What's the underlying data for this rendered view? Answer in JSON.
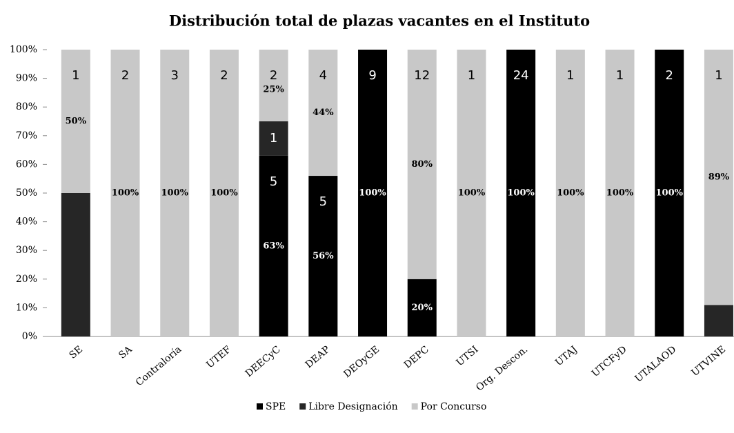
{
  "chart_data": {
    "type": "stacked_bar",
    "title": "Distribución total de plazas vacantes en el Instituto",
    "categories": [
      "SE",
      "SA",
      "Contraloría",
      "UTEF",
      "DEECyC",
      "DEAP",
      "DEOyGE",
      "DEPC",
      "UTSI",
      "Org. Descon.",
      "UTAJ",
      "UTCFyD",
      "UTALAOD",
      "UTVINE"
    ],
    "series": [
      {
        "name": "SPE",
        "color": "#000000",
        "values": [
          null,
          null,
          null,
          null,
          63,
          56,
          100,
          20,
          null,
          100,
          null,
          null,
          100,
          null
        ],
        "value_labels": [
          null,
          null,
          null,
          null,
          "63%",
          "56%",
          "100%",
          "20%",
          null,
          "100%",
          null,
          null,
          "100%",
          null
        ],
        "counts": [
          null,
          null,
          null,
          null,
          5,
          5,
          9,
          null,
          null,
          24,
          null,
          null,
          2,
          null
        ]
      },
      {
        "name": "Libre Designación",
        "color": "#262626",
        "values": [
          50,
          null,
          null,
          null,
          12,
          null,
          null,
          null,
          null,
          null,
          null,
          null,
          null,
          11
        ],
        "value_labels": [
          null,
          null,
          null,
          null,
          null,
          null,
          null,
          null,
          null,
          null,
          null,
          null,
          null,
          null
        ],
        "counts": [
          null,
          null,
          null,
          null,
          1,
          null,
          null,
          null,
          null,
          null,
          null,
          null,
          null,
          null
        ]
      },
      {
        "name": "Por Concurso",
        "color": "#c8c8c8",
        "values": [
          50,
          100,
          100,
          100,
          25,
          44,
          null,
          80,
          100,
          null,
          100,
          100,
          null,
          89
        ],
        "value_labels": [
          "50%",
          "100%",
          "100%",
          "100%",
          "25%",
          "44%",
          null,
          "80%",
          "100%",
          null,
          "100%",
          "100%",
          null,
          "89%"
        ],
        "counts": [
          1,
          2,
          3,
          2,
          2,
          4,
          null,
          12,
          1,
          null,
          1,
          1,
          null,
          1
        ]
      }
    ],
    "ylim": [
      0,
      100
    ],
    "yticks": [
      {
        "value": 0,
        "label": "0%"
      },
      {
        "value": 10,
        "label": "10%"
      },
      {
        "value": 20,
        "label": "20%"
      },
      {
        "value": 30,
        "label": "30%"
      },
      {
        "value": 40,
        "label": "40%"
      },
      {
        "value": 50,
        "label": "50%"
      },
      {
        "value": 60,
        "label": "60%"
      },
      {
        "value": 70,
        "label": "70%"
      },
      {
        "value": 80,
        "label": "80%"
      },
      {
        "value": 90,
        "label": "90%"
      },
      {
        "value": 100,
        "label": "100%"
      }
    ],
    "legend": "bottom"
  }
}
